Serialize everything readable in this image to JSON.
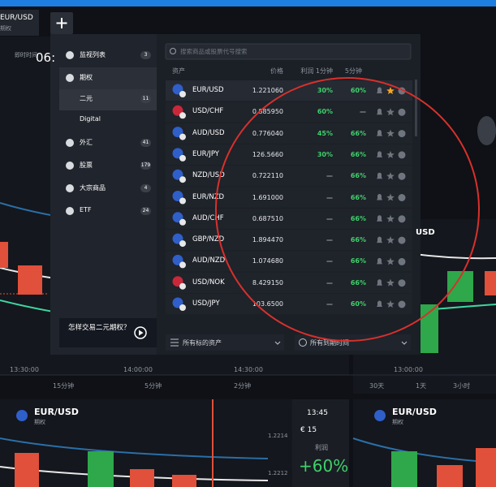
{
  "tab": {
    "symbol": "EUR/USD",
    "sub": "期权"
  },
  "chart_bg": {
    "clock_label": "即时时间",
    "clock": "06:",
    "times": [
      "13:30:00",
      "14:00:00",
      "14:30:00"
    ],
    "periods": [
      "15分钟",
      "5分钟",
      "2分钟"
    ],
    "right_time": "13:00:00",
    "right_periods": [
      "30天",
      "1天",
      "3小时"
    ],
    "right_symbol": "USD"
  },
  "bottom_left": {
    "symbol": "EUR/USD",
    "sub": "期权",
    "expiry": "13:45",
    "amount": "€ 15",
    "profit_label": "利润",
    "profit": "+60%",
    "prices": [
      "1.2214",
      "1.2212"
    ]
  },
  "bottom_right": {
    "symbol": "EUR/USD",
    "sub": "期权"
  },
  "sidebar": {
    "items": [
      {
        "label": "监视列表",
        "count": "3"
      },
      {
        "label": "期权"
      },
      {
        "label": "二元",
        "count": "11"
      },
      {
        "label": "Digital"
      },
      {
        "label": "外汇",
        "count": "41"
      },
      {
        "label": "股票",
        "count": "179"
      },
      {
        "label": "大宗商品",
        "count": "4"
      },
      {
        "label": "ETF",
        "count": "24"
      }
    ],
    "promo": "怎样交易二元期权？"
  },
  "search_placeholder": "搜索商品或股票代号搜索",
  "table": {
    "headers": [
      "资产",
      "价格",
      "利润 1分钟",
      "5分钟"
    ],
    "rows": [
      {
        "asset": "EUR/USD",
        "price": "1.221060",
        "p1": "30%",
        "p5": "60%",
        "favorite": true
      },
      {
        "asset": "USD/CHF",
        "price": "0.885950",
        "p1": "60%",
        "p5": "—",
        "favorite": false
      },
      {
        "asset": "AUD/USD",
        "price": "0.776040",
        "p1": "45%",
        "p5": "66%",
        "favorite": false
      },
      {
        "asset": "EUR/JPY",
        "price": "126.5660",
        "p1": "30%",
        "p5": "66%",
        "favorite": false
      },
      {
        "asset": "NZD/USD",
        "price": "0.722110",
        "p1": "—",
        "p5": "66%",
        "favorite": false
      },
      {
        "asset": "EUR/NZD",
        "price": "1.691000",
        "p1": "—",
        "p5": "66%",
        "favorite": false
      },
      {
        "asset": "AUD/CHF",
        "price": "0.687510",
        "p1": "—",
        "p5": "66%",
        "favorite": false
      },
      {
        "asset": "GBP/NZD",
        "price": "1.894470",
        "p1": "—",
        "p5": "66%",
        "favorite": false
      },
      {
        "asset": "AUD/NZD",
        "price": "1.074680",
        "p1": "—",
        "p5": "66%",
        "favorite": false
      },
      {
        "asset": "USD/NOK",
        "price": "8.429150",
        "p1": "—",
        "p5": "66%",
        "favorite": false
      },
      {
        "asset": "USD/JPY",
        "price": "103.6500",
        "p1": "—",
        "p5": "60%",
        "favorite": false
      }
    ]
  },
  "footer": {
    "assets": "所有标的资产",
    "expiry": "所有到期时间"
  }
}
